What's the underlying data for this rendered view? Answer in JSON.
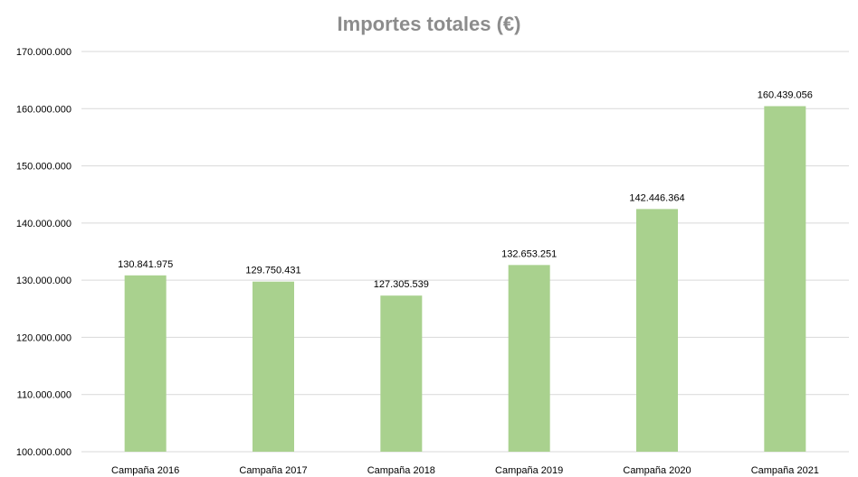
{
  "chart_data": {
    "type": "bar",
    "title": "Importes totales (€)",
    "categories": [
      "Campaña 2016",
      "Campaña 2017",
      "Campaña 2018",
      "Campaña 2019",
      "Campaña 2020",
      "Campaña 2021"
    ],
    "values": [
      130841975,
      129750431,
      127305539,
      132653251,
      142446364,
      160439056
    ],
    "value_labels": [
      "130.841.975",
      "129.750.431",
      "127.305.539",
      "132.653.251",
      "142.446.364",
      "160.439.056"
    ],
    "y_ticks": [
      "100.000.000",
      "110.000.000",
      "120.000.000",
      "130.000.000",
      "140.000.000",
      "150.000.000",
      "160.000.000",
      "170.000.000"
    ],
    "ylim": [
      100000000,
      170000000
    ],
    "xlabel": "",
    "ylabel": "",
    "grid": true,
    "legend": "none",
    "colors": {
      "bar": "#a9d18e",
      "grid": "#d9d9d9",
      "title": "#8c8c8c",
      "text": "#000000"
    }
  }
}
